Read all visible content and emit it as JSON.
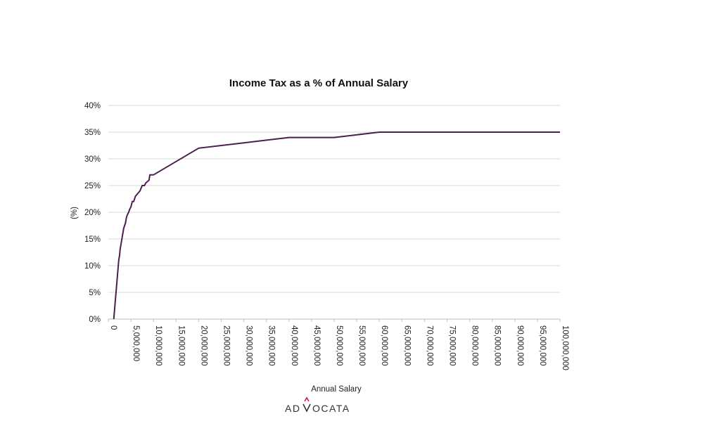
{
  "chart_data": {
    "type": "line",
    "title": "Income Tax as a % of Annual Salary",
    "xlabel": "Annual Salary",
    "ylabel": "(%)",
    "xlim": [
      0,
      100000000
    ],
    "ylim": [
      0,
      40
    ],
    "y_ticks": [
      "0%",
      "5%",
      "10%",
      "15%",
      "20%",
      "25%",
      "30%",
      "35%",
      "40%"
    ],
    "x_ticks": [
      "0",
      "5,000,000",
      "10,000,000",
      "15,000,000",
      "20,000,000",
      "25,000,000",
      "30,000,000",
      "35,000,000",
      "40,000,000",
      "45,000,000",
      "50,000,000",
      "55,000,000",
      "60,000,000",
      "65,000,000",
      "70,000,000",
      "75,000,000",
      "80,000,000",
      "85,000,000",
      "90,000,000",
      "95,000,000",
      "100,000,000"
    ],
    "grid": true,
    "legend": "none",
    "color": "#4b1f4e",
    "series": [
      {
        "x": [
          1200000,
          1300000,
          1400000,
          1500000,
          1600000,
          1700000,
          1800000,
          1900000,
          2000000,
          2100000,
          2200000,
          2300000,
          2400000,
          2500000,
          2600000,
          2800000,
          3000000,
          3200000,
          3400000,
          3600000,
          3800000,
          4000000,
          4200000,
          4500000,
          4700000,
          5000000,
          5300000,
          5600000,
          6000000,
          6500000,
          7000000,
          7500000,
          8000000,
          8300000,
          9000000,
          9200000,
          10000000,
          20000000,
          30000000,
          40000000,
          50000000,
          60000000,
          70000000,
          80000000,
          90000000,
          100000000
        ],
        "y": [
          0,
          1,
          2,
          3,
          4,
          5,
          6,
          7,
          8,
          9,
          10,
          11,
          11.5,
          12,
          13,
          14,
          15,
          16,
          17,
          17.5,
          18,
          19,
          19.5,
          20,
          20.5,
          21,
          22,
          22,
          23,
          23.5,
          24,
          25,
          25,
          25.5,
          26,
          27,
          27,
          32,
          33,
          34,
          34,
          35,
          35,
          35,
          35,
          35
        ]
      }
    ]
  },
  "logo": {
    "text_left": "AD",
    "text_right": "OCATA",
    "accent_color": "#d4145a"
  }
}
